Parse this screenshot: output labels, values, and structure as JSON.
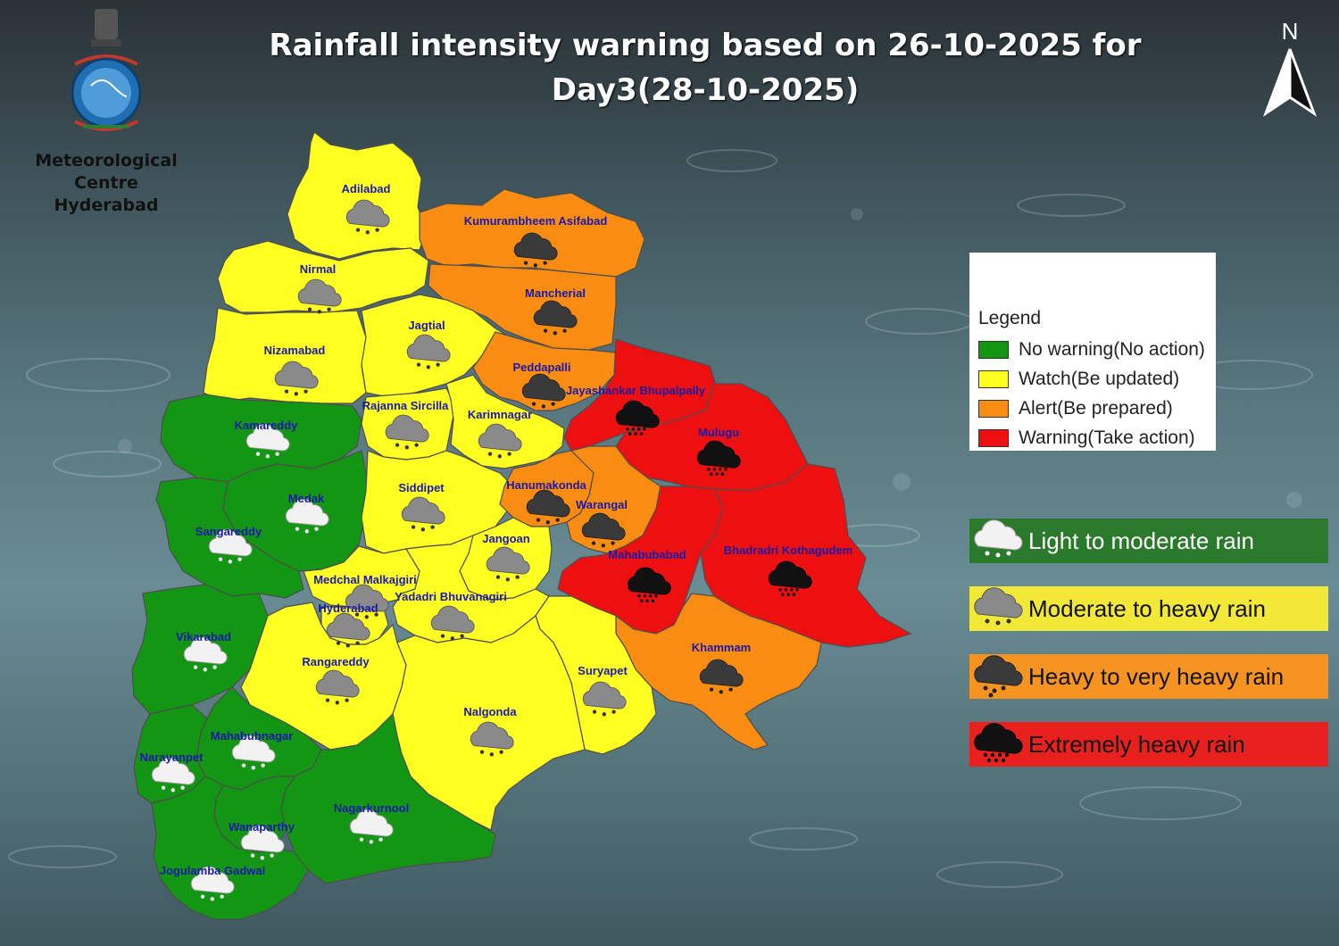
{
  "title": "Rainfall intensity warning based on 26-10-2025 for Day3(28-10-2025)",
  "organization": {
    "name_line1": "Meteorological Centre",
    "name_line2": "Hyderabad",
    "emblem": "imd-emblem-icon"
  },
  "north_arrow": {
    "label": "N"
  },
  "legend": {
    "title": "Legend",
    "items": [
      {
        "label": "No warning(No action)",
        "color": "#139613"
      },
      {
        "label": "Watch(Be updated)",
        "color": "#ffff22"
      },
      {
        "label": "Alert(Be prepared)",
        "color": "#fa8c11"
      },
      {
        "label": "Warning(Take action)",
        "color": "#ee1010"
      }
    ]
  },
  "rain_categories": [
    {
      "label": "Light to moderate rain",
      "bg": "#2b7a2b",
      "text_color": "#ffffff",
      "icon": "light-rain-cloud-icon"
    },
    {
      "label": "Moderate to heavy rain",
      "bg": "#f2e838",
      "text_color": "#111111",
      "icon": "moderate-rain-cloud-icon"
    },
    {
      "label": "Heavy to very heavy rain",
      "bg": "#f79320",
      "text_color": "#111111",
      "icon": "heavy-rain-cloud-icon"
    },
    {
      "label": "Extremely heavy rain",
      "bg": "#e8211f",
      "text_color": "#111111",
      "icon": "extreme-rain-cloud-icon"
    }
  ],
  "districts": [
    {
      "name": "Adilabad",
      "level": "watch",
      "rain": "moderate"
    },
    {
      "name": "Kumurambheem Asifabad",
      "level": "alert",
      "rain": "heavy"
    },
    {
      "name": "Nirmal",
      "level": "watch",
      "rain": "moderate"
    },
    {
      "name": "Mancherial",
      "level": "alert",
      "rain": "heavy"
    },
    {
      "name": "Nizamabad",
      "level": "watch",
      "rain": "moderate"
    },
    {
      "name": "Jagtial",
      "level": "watch",
      "rain": "moderate"
    },
    {
      "name": "Peddapalli",
      "level": "alert",
      "rain": "heavy"
    },
    {
      "name": "Jayashankar Bhupalpally",
      "level": "warning",
      "rain": "extreme"
    },
    {
      "name": "Kamareddy",
      "level": "none",
      "rain": "light"
    },
    {
      "name": "Rajanna Sircilla",
      "level": "watch",
      "rain": "moderate"
    },
    {
      "name": "Karimnagar",
      "level": "watch",
      "rain": "moderate"
    },
    {
      "name": "Mulugu",
      "level": "warning",
      "rain": "extreme"
    },
    {
      "name": "Medak",
      "level": "none",
      "rain": "light"
    },
    {
      "name": "Siddipet",
      "level": "watch",
      "rain": "moderate"
    },
    {
      "name": "Hanumakonda",
      "level": "alert",
      "rain": "heavy"
    },
    {
      "name": "Warangal",
      "level": "alert",
      "rain": "heavy"
    },
    {
      "name": "Sangareddy",
      "level": "none",
      "rain": "light"
    },
    {
      "name": "Jangoan",
      "level": "watch",
      "rain": "moderate"
    },
    {
      "name": "Bhadradri Kothagudem",
      "level": "warning",
      "rain": "extreme"
    },
    {
      "name": "Mahabubabad",
      "level": "warning",
      "rain": "extreme"
    },
    {
      "name": "Medchal Malkajgiri",
      "level": "watch",
      "rain": "moderate"
    },
    {
      "name": "Yadadri Bhuvanagiri",
      "level": "watch",
      "rain": "moderate"
    },
    {
      "name": "Hyderabad",
      "level": "watch",
      "rain": "moderate"
    },
    {
      "name": "Vikarabad",
      "level": "none",
      "rain": "light"
    },
    {
      "name": "Rangareddy",
      "level": "watch",
      "rain": "moderate"
    },
    {
      "name": "Khammam",
      "level": "alert",
      "rain": "heavy"
    },
    {
      "name": "Suryapet",
      "level": "watch",
      "rain": "moderate"
    },
    {
      "name": "Nalgonda",
      "level": "watch",
      "rain": "moderate"
    },
    {
      "name": "Mahabubnagar",
      "level": "none",
      "rain": "light"
    },
    {
      "name": "Narayanpet",
      "level": "none",
      "rain": "light"
    },
    {
      "name": "Nagarkurnool",
      "level": "none",
      "rain": "light"
    },
    {
      "name": "Wanaparthy",
      "level": "none",
      "rain": "light"
    },
    {
      "name": "Jogulamba Gadwal",
      "level": "none",
      "rain": "light"
    }
  ]
}
